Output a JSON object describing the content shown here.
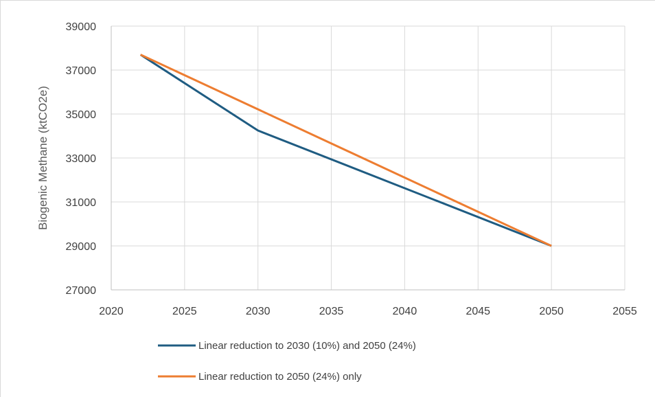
{
  "chart_data": {
    "type": "line",
    "title": "",
    "xlabel": "",
    "ylabel": "Biogenic Methane (ktCO2e)",
    "xlim": [
      2020,
      2055
    ],
    "ylim": [
      27000,
      39000
    ],
    "x_ticks": [
      "2020",
      "2025",
      "2030",
      "2035",
      "2040",
      "2045",
      "2050",
      "2055"
    ],
    "y_ticks": [
      "39000",
      "37000",
      "35000",
      "33000",
      "31000",
      "29000",
      "27000"
    ],
    "grid": true,
    "legend_position": "bottom",
    "series": [
      {
        "name": "Linear reduction to 2030 (10%) and 2050 (24%)",
        "color": "#1f5c82",
        "x": [
          2022,
          2030,
          2050
        ],
        "y": [
          37700,
          34250,
          29000
        ]
      },
      {
        "name": "Linear reduction to 2050 (24%) only",
        "color": "#ed7d31",
        "x": [
          2022,
          2050
        ],
        "y": [
          37700,
          29000
        ]
      }
    ]
  }
}
